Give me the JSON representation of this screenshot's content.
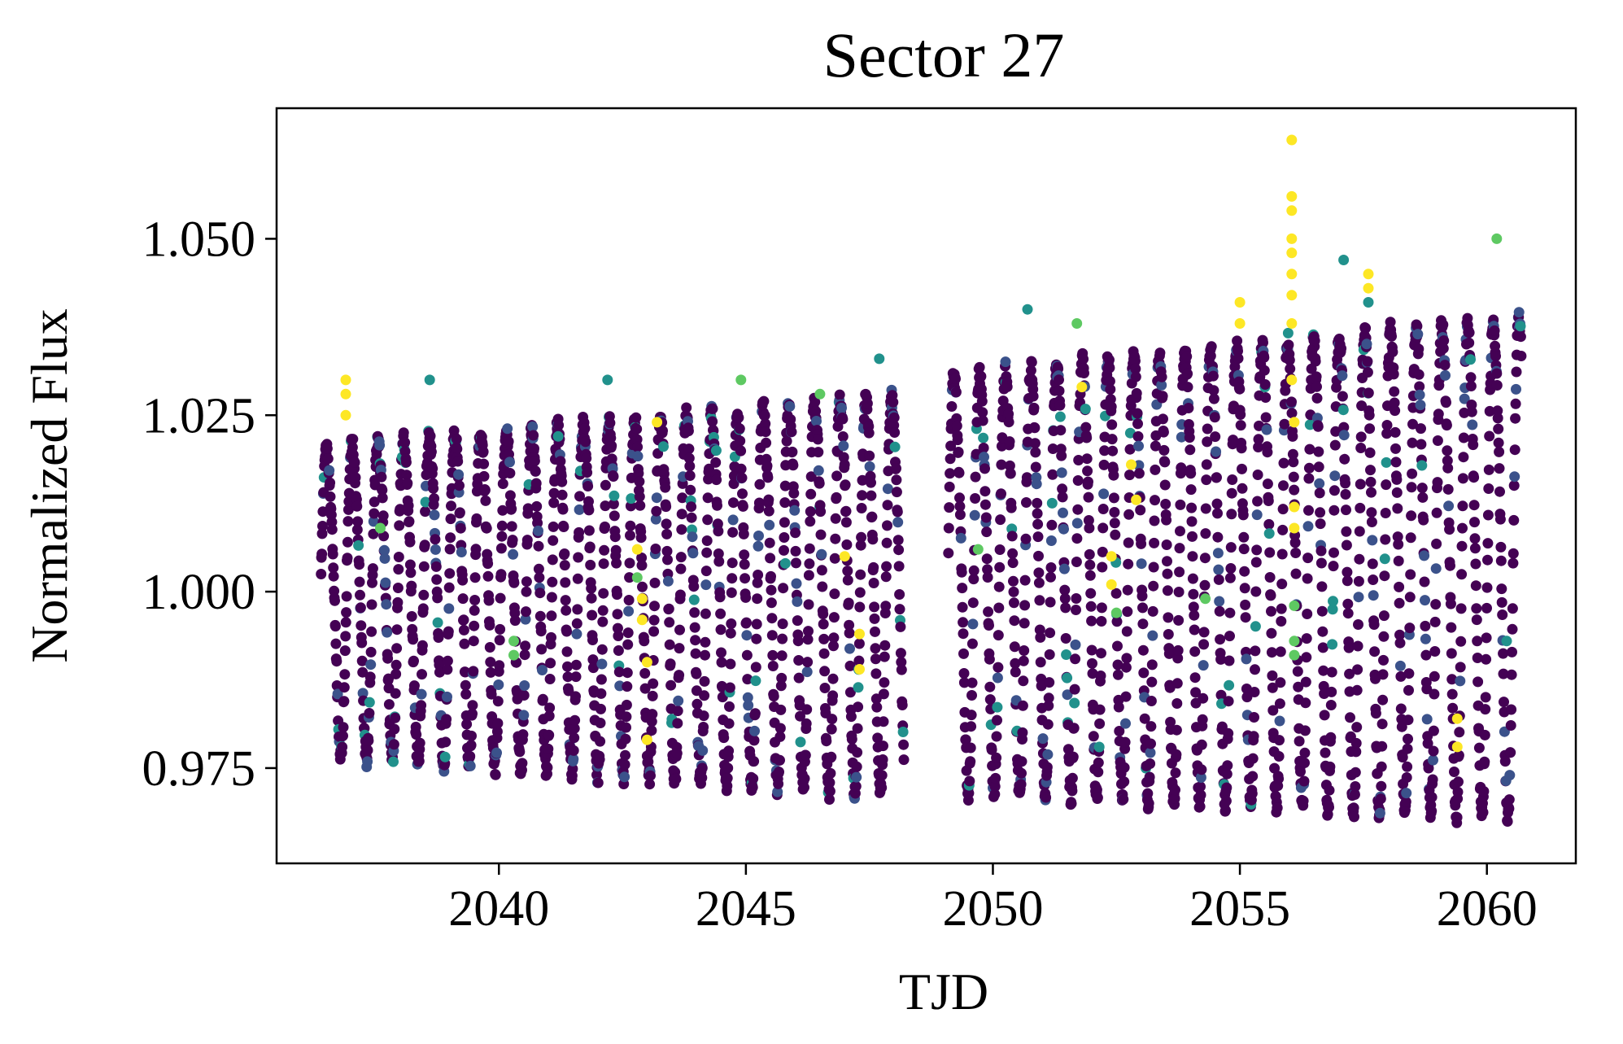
{
  "chart_data": {
    "type": "scatter",
    "title": "Sector 27",
    "xlabel": "TJD",
    "ylabel": "Normalized Flux",
    "xlim": [
      2035.5,
      2061.8
    ],
    "ylim": [
      0.9615,
      1.0685
    ],
    "xticks": [
      {
        "value": 2040,
        "label": "2040"
      },
      {
        "value": 2045,
        "label": "2045"
      },
      {
        "value": 2050,
        "label": "2050"
      },
      {
        "value": 2055,
        "label": "2055"
      },
      {
        "value": 2060,
        "label": "2060"
      }
    ],
    "yticks": [
      {
        "value": 0.975,
        "label": "0.975"
      },
      {
        "value": 1.0,
        "label": "1.000"
      },
      {
        "value": 1.025,
        "label": "1.025"
      },
      {
        "value": 1.05,
        "label": "1.050"
      }
    ],
    "grid": false,
    "legend": "none",
    "colormap": "viridis",
    "colors": {
      "dominant": "#440154",
      "secondary": "#3b528b",
      "teal": "#21918c",
      "green": "#5ec962",
      "yellow": "#fde725"
    },
    "segments": [
      {
        "x_start": 2036.4,
        "x_end": 2048.2
      },
      {
        "x_start": 2049.1,
        "x_end": 2060.7
      }
    ],
    "oscillation": {
      "period_days": 0.52,
      "segment_1_max_start": 1.023,
      "segment_1_max_end": 1.031,
      "segment_1_min_start": 0.977,
      "segment_1_min_end": 0.971,
      "segment_2_max_start": 1.034,
      "segment_2_max_end": 1.043,
      "segment_2_min_start": 0.972,
      "segment_2_min_end": 0.968
    },
    "outliers": [
      {
        "x": 2036.9,
        "y": 1.03,
        "c": "yellow"
      },
      {
        "x": 2036.9,
        "y": 1.028,
        "c": "yellow"
      },
      {
        "x": 2036.9,
        "y": 1.025,
        "c": "yellow"
      },
      {
        "x": 2037.6,
        "y": 1.009,
        "c": "green"
      },
      {
        "x": 2038.6,
        "y": 1.03,
        "c": "teal"
      },
      {
        "x": 2040.3,
        "y": 0.993,
        "c": "green"
      },
      {
        "x": 2040.3,
        "y": 0.991,
        "c": "green"
      },
      {
        "x": 2041.2,
        "y": 1.022,
        "c": "teal"
      },
      {
        "x": 2042.2,
        "y": 1.03,
        "c": "teal"
      },
      {
        "x": 2042.8,
        "y": 1.006,
        "c": "yellow"
      },
      {
        "x": 2042.8,
        "y": 1.002,
        "c": "green"
      },
      {
        "x": 2042.9,
        "y": 0.999,
        "c": "yellow"
      },
      {
        "x": 2042.9,
        "y": 0.996,
        "c": "yellow"
      },
      {
        "x": 2043.0,
        "y": 0.99,
        "c": "yellow"
      },
      {
        "x": 2043.0,
        "y": 0.979,
        "c": "yellow"
      },
      {
        "x": 2043.2,
        "y": 1.024,
        "c": "yellow"
      },
      {
        "x": 2044.4,
        "y": 1.02,
        "c": "teal"
      },
      {
        "x": 2044.9,
        "y": 1.03,
        "c": "green"
      },
      {
        "x": 2045.8,
        "y": 1.004,
        "c": "teal"
      },
      {
        "x": 2046.5,
        "y": 1.028,
        "c": "green"
      },
      {
        "x": 2047.0,
        "y": 1.005,
        "c": "yellow"
      },
      {
        "x": 2047.3,
        "y": 0.994,
        "c": "yellow"
      },
      {
        "x": 2047.3,
        "y": 0.989,
        "c": "yellow"
      },
      {
        "x": 2047.7,
        "y": 1.033,
        "c": "teal"
      },
      {
        "x": 2049.7,
        "y": 1.006,
        "c": "green"
      },
      {
        "x": 2050.7,
        "y": 1.04,
        "c": "teal"
      },
      {
        "x": 2051.7,
        "y": 1.038,
        "c": "green"
      },
      {
        "x": 2051.8,
        "y": 1.029,
        "c": "yellow"
      },
      {
        "x": 2052.4,
        "y": 1.005,
        "c": "yellow"
      },
      {
        "x": 2052.4,
        "y": 1.001,
        "c": "yellow"
      },
      {
        "x": 2052.5,
        "y": 0.997,
        "c": "green"
      },
      {
        "x": 2052.8,
        "y": 1.018,
        "c": "yellow"
      },
      {
        "x": 2052.9,
        "y": 1.013,
        "c": "yellow"
      },
      {
        "x": 2054.3,
        "y": 0.999,
        "c": "green"
      },
      {
        "x": 2055.0,
        "y": 1.041,
        "c": "yellow"
      },
      {
        "x": 2055.0,
        "y": 1.038,
        "c": "yellow"
      },
      {
        "x": 2056.05,
        "y": 1.064,
        "c": "yellow"
      },
      {
        "x": 2056.05,
        "y": 1.056,
        "c": "yellow"
      },
      {
        "x": 2056.05,
        "y": 1.054,
        "c": "yellow"
      },
      {
        "x": 2056.05,
        "y": 1.05,
        "c": "yellow"
      },
      {
        "x": 2056.05,
        "y": 1.048,
        "c": "yellow"
      },
      {
        "x": 2056.05,
        "y": 1.045,
        "c": "yellow"
      },
      {
        "x": 2056.05,
        "y": 1.042,
        "c": "yellow"
      },
      {
        "x": 2056.05,
        "y": 1.038,
        "c": "yellow"
      },
      {
        "x": 2056.05,
        "y": 1.03,
        "c": "yellow"
      },
      {
        "x": 2056.1,
        "y": 1.024,
        "c": "yellow"
      },
      {
        "x": 2056.1,
        "y": 1.012,
        "c": "yellow"
      },
      {
        "x": 2056.1,
        "y": 1.009,
        "c": "yellow"
      },
      {
        "x": 2056.1,
        "y": 0.998,
        "c": "green"
      },
      {
        "x": 2056.1,
        "y": 0.993,
        "c": "green"
      },
      {
        "x": 2056.1,
        "y": 0.991,
        "c": "green"
      },
      {
        "x": 2057.1,
        "y": 1.047,
        "c": "teal"
      },
      {
        "x": 2057.6,
        "y": 1.045,
        "c": "yellow"
      },
      {
        "x": 2057.6,
        "y": 1.043,
        "c": "yellow"
      },
      {
        "x": 2057.6,
        "y": 1.041,
        "c": "teal"
      },
      {
        "x": 2059.4,
        "y": 0.982,
        "c": "yellow"
      },
      {
        "x": 2059.4,
        "y": 0.978,
        "c": "yellow"
      },
      {
        "x": 2060.2,
        "y": 1.05,
        "c": "green"
      },
      {
        "x": 2060.4,
        "y": 0.993,
        "c": "teal"
      }
    ]
  }
}
